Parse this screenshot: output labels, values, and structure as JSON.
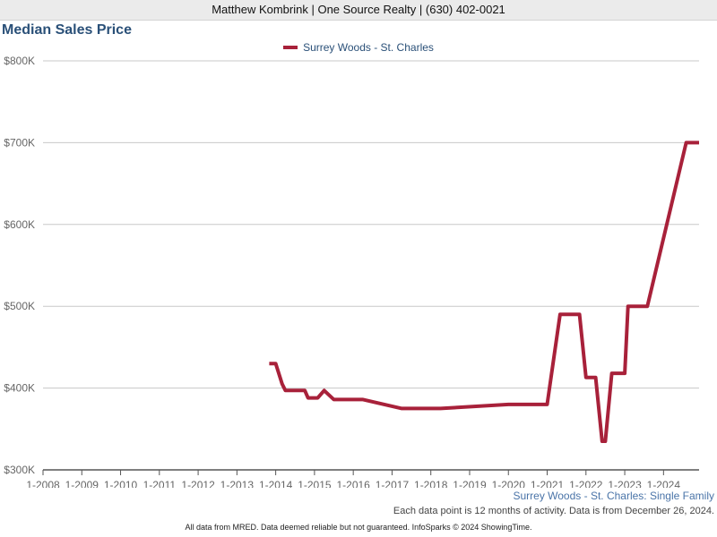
{
  "header": {
    "text": "Matthew Kombrink | One Source Realty | (630) 402-0021"
  },
  "colors": {
    "series": "#a8213a",
    "title": "#2a5078",
    "grid": "#c8c8c8",
    "axis": "#555555"
  },
  "chart_data": {
    "type": "line",
    "title": "Median Sales Price",
    "xlabel": "",
    "ylabel": "",
    "xlim": [
      "2008-01",
      "2024-12"
    ],
    "ylim": [
      300000,
      800000
    ],
    "y_ticks": [
      300000,
      400000,
      500000,
      600000,
      700000,
      800000
    ],
    "y_tick_labels": [
      "$300K",
      "$400K",
      "$500K",
      "$600K",
      "$700K",
      "$800K"
    ],
    "x_ticks": [
      "2008-01",
      "2009-01",
      "2010-01",
      "2011-01",
      "2012-01",
      "2013-01",
      "2014-01",
      "2015-01",
      "2016-01",
      "2017-01",
      "2018-01",
      "2019-01",
      "2020-01",
      "2021-01",
      "2022-01",
      "2023-01",
      "2024-01"
    ],
    "x_tick_labels": [
      "1-2008",
      "1-2009",
      "1-2010",
      "1-2011",
      "1-2012",
      "1-2013",
      "1-2014",
      "1-2015",
      "1-2016",
      "1-2017",
      "1-2018",
      "1-2019",
      "1-2020",
      "1-2021",
      "1-2022",
      "1-2023",
      "1-2024"
    ],
    "grid": "horizontal",
    "legend_position": "top-center",
    "series": [
      {
        "name": "Surrey Woods - St. Charles",
        "color": "#a8213a",
        "points": [
          {
            "x": "2013-11",
            "y": 430000
          },
          {
            "x": "2014-01",
            "y": 430000
          },
          {
            "x": "2014-03",
            "y": 405000
          },
          {
            "x": "2014-04",
            "y": 397000
          },
          {
            "x": "2014-10",
            "y": 397000
          },
          {
            "x": "2014-11",
            "y": 388000
          },
          {
            "x": "2015-02",
            "y": 388000
          },
          {
            "x": "2015-04",
            "y": 397000
          },
          {
            "x": "2015-07",
            "y": 386000
          },
          {
            "x": "2016-04",
            "y": 386000
          },
          {
            "x": "2017-04",
            "y": 375000
          },
          {
            "x": "2018-04",
            "y": 375000
          },
          {
            "x": "2020-01",
            "y": 380000
          },
          {
            "x": "2021-01",
            "y": 380000
          },
          {
            "x": "2021-05",
            "y": 490000
          },
          {
            "x": "2021-11",
            "y": 490000
          },
          {
            "x": "2022-01",
            "y": 413000
          },
          {
            "x": "2022-04",
            "y": 413000
          },
          {
            "x": "2022-06",
            "y": 335000
          },
          {
            "x": "2022-07",
            "y": 335000
          },
          {
            "x": "2022-09",
            "y": 418000
          },
          {
            "x": "2023-01",
            "y": 418000
          },
          {
            "x": "2023-02",
            "y": 500000
          },
          {
            "x": "2023-08",
            "y": 500000
          },
          {
            "x": "2024-08",
            "y": 700000
          },
          {
            "x": "2024-12",
            "y": 700000
          }
        ]
      }
    ]
  },
  "footer": {
    "region": "Surrey Woods - St. Charles: Single Family",
    "note": "Each data point is 12 months of activity. Data is from December 26, 2024.",
    "disclaimer": "All data from MRED. Data deemed reliable but not guaranteed. InfoSparks © 2024 ShowingTime."
  }
}
